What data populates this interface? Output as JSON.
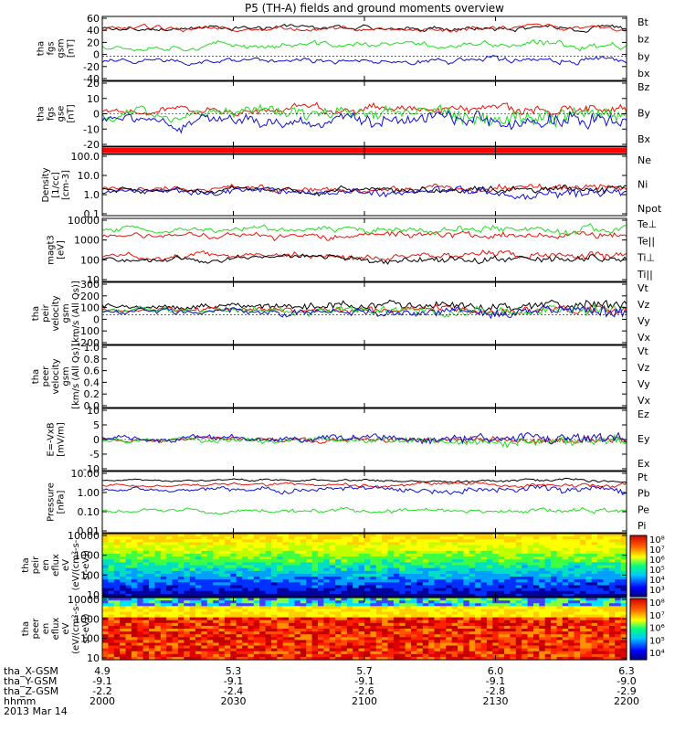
{
  "title": "P5 (TH-A) fields and ground moments overview",
  "date": "2013 Mar 14",
  "colors": {
    "black": "#000000",
    "red": "#e8140c",
    "green": "#22dd22",
    "blue": "#1010d0"
  },
  "colorbars": [
    {
      "labels": [
        "10⁸",
        "10⁷",
        "10⁶",
        "10⁵",
        "10⁴",
        "10³"
      ]
    },
    {
      "labels": [
        "10⁸",
        "10⁷",
        "10⁶",
        "10⁵",
        "10⁴"
      ]
    }
  ],
  "ephemeris": {
    "rows": [
      {
        "label": "tha_X-GSM",
        "values": [
          "4.9",
          "5.3",
          "5.7",
          "6.0",
          "6.3"
        ]
      },
      {
        "label": "tha_Y-GSM",
        "values": [
          "-9.1",
          "-9.1",
          "-9.1",
          "-9.1",
          "-9.0"
        ]
      },
      {
        "label": "tha_Z-GSM",
        "values": [
          "-2.2",
          "-2.4",
          "-2.6",
          "-2.8",
          "-2.9"
        ]
      },
      {
        "label": "hhmm",
        "values": [
          "2000",
          "2030",
          "2100",
          "2130",
          "2200"
        ]
      }
    ]
  },
  "chart_data": [
    {
      "id": "fgs_gsm",
      "type": "line",
      "ylabel": [
        "tha",
        "fgs",
        "gsm",
        "[nT]"
      ],
      "yticks": [
        "60",
        "40",
        "20",
        "0",
        "-20",
        "-40"
      ],
      "legend": [
        {
          "name": "Bt",
          "color": "black"
        },
        {
          "name": "bz",
          "color": "red"
        },
        {
          "name": "by",
          "color": "green"
        },
        {
          "name": "bx",
          "color": "blue"
        }
      ]
    },
    {
      "id": "fgs_gse",
      "type": "line",
      "ylabel": [
        "tha",
        "fgs",
        "gse",
        "[nT]"
      ],
      "yticks": [
        "20",
        "10",
        "0",
        "-10",
        "-20"
      ],
      "legend": [
        {
          "name": "Bz",
          "color": "red"
        },
        {
          "name": "By",
          "color": "green"
        },
        {
          "name": "Bx",
          "color": "blue"
        }
      ]
    },
    {
      "id": "flag",
      "type": "area",
      "legend": []
    },
    {
      "id": "density",
      "type": "line",
      "ylabel": [
        "Density",
        "[1/cc]",
        "[cm-3]"
      ],
      "yticks": [
        "100.0",
        "10.0",
        "1.0",
        "0.1"
      ],
      "ylog": true,
      "legend": [
        {
          "name": "Ne",
          "color": "red"
        },
        {
          "name": "Ni",
          "color": "black"
        },
        {
          "name": "Npot",
          "color": "blue"
        }
      ]
    },
    {
      "id": "temp",
      "type": "line",
      "ylabel": [
        "magt3",
        "[eV]"
      ],
      "yticks": [
        "10000",
        "1000",
        "100",
        "10"
      ],
      "ylog": true,
      "legend": [
        {
          "name": "Te⊥",
          "color": "red"
        },
        {
          "name": "Te||",
          "color": "black"
        },
        {
          "name": "Ti⊥",
          "color": "red"
        },
        {
          "name": "Ti||",
          "color": "green"
        }
      ]
    },
    {
      "id": "peir_vel",
      "type": "line",
      "ylabel": [
        "tha",
        "peir",
        "velocity",
        "gsm",
        "[km/s (All Qs)]"
      ],
      "yticks": [
        "300",
        "200",
        "100",
        "0",
        "-100",
        "-200"
      ],
      "legend": [
        {
          "name": "Vt",
          "color": "black"
        },
        {
          "name": "Vz",
          "color": "red"
        },
        {
          "name": "Vy",
          "color": "green"
        },
        {
          "name": "Vx",
          "color": "blue"
        }
      ]
    },
    {
      "id": "peer_vel",
      "type": "line",
      "ylabel": [
        "tha",
        "peer",
        "velocity",
        "gsm",
        "[km/s (All Qs)]"
      ],
      "yticks": [
        "1.0",
        "0.8",
        "0.6",
        "0.4",
        "0.2",
        "0.0"
      ],
      "legend": [
        {
          "name": "Vt",
          "color": "black"
        },
        {
          "name": "Vz",
          "color": "red"
        },
        {
          "name": "Vy",
          "color": "green"
        },
        {
          "name": "Vx",
          "color": "blue"
        }
      ]
    },
    {
      "id": "efield",
      "type": "line",
      "ylabel": [
        "E=-VxB",
        "[mV/m]"
      ],
      "yticks": [
        "10",
        "5",
        "0",
        "-5",
        "-10"
      ],
      "legend": [
        {
          "name": "Ez",
          "color": "red"
        },
        {
          "name": "Ey",
          "color": "green"
        },
        {
          "name": "Ex",
          "color": "blue"
        }
      ]
    },
    {
      "id": "pressure",
      "type": "line",
      "ylabel": [
        "Pressure",
        "[nPa]"
      ],
      "yticks": [
        "10.00",
        "1.00",
        "0.10",
        "0.01"
      ],
      "ylog": true,
      "legend": [
        {
          "name": "Pt",
          "color": "black"
        },
        {
          "name": "Pb",
          "color": "red"
        },
        {
          "name": "Pe",
          "color": "green"
        },
        {
          "name": "Pi",
          "color": "blue"
        }
      ]
    },
    {
      "id": "peir_spec",
      "type": "heatmap",
      "ylabel": [
        "tha",
        "peir",
        "en",
        "eflux",
        "eV",
        "(eV/(cm²-s-",
        "sr-eV))"
      ],
      "yticks": [
        "10000",
        "1000",
        "100",
        "10"
      ],
      "legend": []
    },
    {
      "id": "peer_spec",
      "type": "heatmap",
      "ylabel": [
        "tha",
        "peer",
        "en",
        "eflux",
        "eV",
        "(eV/(cm²-s-",
        "sr-eV))"
      ],
      "yticks": [
        "10000",
        "1000",
        "100",
        "10"
      ],
      "legend": []
    }
  ]
}
